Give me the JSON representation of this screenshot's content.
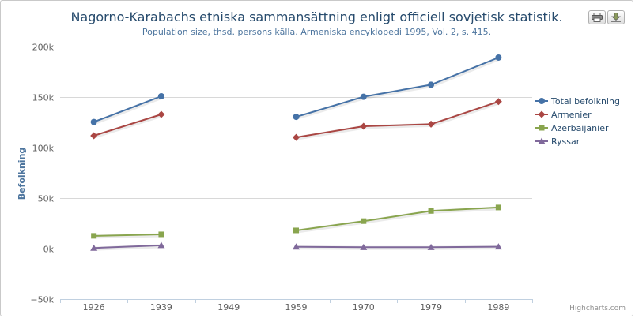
{
  "title": "Nagorno-Karabachs etniska sammansättning enligt officiell sovjetisk statistik.",
  "subtitle": "Population size, thsd. persons källa. Armeniska encyklopedi 1995, Vol. 2, s. 415.",
  "credits": "Highcharts.com",
  "chart_data": {
    "type": "line",
    "title": "Nagorno-Karabachs etniska sammansättning enligt officiell sovjetisk statistik.",
    "subtitle": "Population size, thsd. persons källa. Armeniska encyklopedi 1995, Vol. 2, s. 415.",
    "xlabel": "",
    "ylabel": "Befolkning",
    "categories": [
      "1926",
      "1939",
      "1949",
      "1959",
      "1970",
      "1979",
      "1989"
    ],
    "yticks": [
      "−50k",
      "0k",
      "50k",
      "100k",
      "150k",
      "200k"
    ],
    "ytick_values": [
      -50000,
      0,
      50000,
      100000,
      150000,
      200000
    ],
    "ylim": [
      -50000,
      200000
    ],
    "grid": true,
    "legend_position": "right",
    "series": [
      {
        "name": "Total befolkning",
        "color": "#4572a7",
        "marker": "circle",
        "values": [
          125300,
          150800,
          null,
          130400,
          150300,
          162200,
          189100
        ]
      },
      {
        "name": "Armenier",
        "color": "#aa4643",
        "marker": "diamond",
        "values": [
          111700,
          132800,
          null,
          110100,
          121100,
          123100,
          145500
        ]
      },
      {
        "name": "Azerbaijanier",
        "color": "#89a54e",
        "marker": "square",
        "values": [
          12600,
          14100,
          null,
          18000,
          27200,
          37300,
          40700
        ]
      },
      {
        "name": "Ryssar",
        "color": "#80699b",
        "marker": "triangle",
        "values": [
          600,
          3200,
          null,
          1800,
          1300,
          1300,
          1900
        ]
      }
    ]
  }
}
